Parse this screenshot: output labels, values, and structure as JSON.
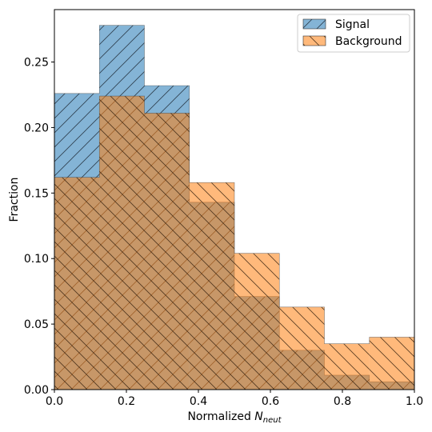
{
  "chart_data": {
    "type": "bar",
    "subtype": "histogram",
    "xlabel_main": "Normalized ",
    "xlabel_symbol": "N",
    "xlabel_subscript": "neut",
    "ylabel": "Fraction",
    "xlim": [
      0.0,
      1.0
    ],
    "ylim": [
      0.0,
      0.29
    ],
    "bin_edges": [
      0.0,
      0.125,
      0.25,
      0.375,
      0.5,
      0.625,
      0.75,
      0.875,
      1.0
    ],
    "xticks": [
      "0.0",
      "0.2",
      "0.4",
      "0.6",
      "0.8",
      "1.0"
    ],
    "xtick_values": [
      0.0,
      0.2,
      0.4,
      0.6,
      0.8,
      1.0
    ],
    "yticks": [
      "0.00",
      "0.05",
      "0.10",
      "0.15",
      "0.20",
      "0.25"
    ],
    "ytick_values": [
      0.0,
      0.05,
      0.1,
      0.15,
      0.2,
      0.25
    ],
    "grid": false,
    "legend_position": "top-right",
    "series": [
      {
        "name": "Signal",
        "values": [
          0.226,
          0.278,
          0.232,
          0.143,
          0.071,
          0.03,
          0.011,
          0.006
        ],
        "color": "#1f77b4",
        "hatch": "forward-diagonal"
      },
      {
        "name": "Background",
        "values": [
          0.162,
          0.224,
          0.211,
          0.158,
          0.104,
          0.063,
          0.035,
          0.04
        ],
        "color": "#ff7f0e",
        "hatch": "back-diagonal"
      }
    ]
  }
}
